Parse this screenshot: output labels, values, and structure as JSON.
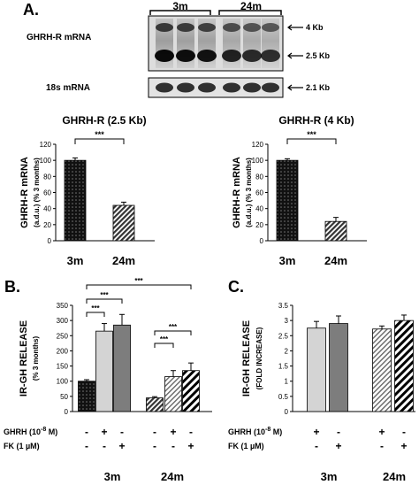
{
  "panel_letters": {
    "a": "A.",
    "b": "B.",
    "c": "C."
  },
  "blot": {
    "groups": [
      "3m",
      "24m"
    ],
    "rows": [
      {
        "label": "GHRH-R mRNA",
        "bands": [
          "4 Kb",
          "2.5 Kb"
        ]
      },
      {
        "label": "18s mRNA",
        "bands": [
          "2.1 Kb"
        ]
      }
    ]
  },
  "chart_data": [
    {
      "type": "bar",
      "title": "GHRH-R (2.5 Kb)",
      "ylabel_line1": "GHRH-R mRNA",
      "ylabel_line2": "(a.d.u.) (% 3 months)",
      "categories": [
        "3m",
        "24m"
      ],
      "values": [
        100,
        44
      ],
      "errors": [
        3,
        4
      ],
      "patterns": [
        "dots",
        "hatch"
      ],
      "ylim": [
        0,
        120
      ],
      "yticks": [
        0,
        20,
        40,
        60,
        80,
        100,
        120
      ],
      "significance": [
        {
          "from": 0,
          "to": 1,
          "label": "***"
        }
      ]
    },
    {
      "type": "bar",
      "title": "GHRH-R (4 Kb)",
      "ylabel_line1": "GHRH-R mRNA",
      "ylabel_line2": "(a.d.u.) (% 3 months)",
      "categories": [
        "3m",
        "24m"
      ],
      "values": [
        100,
        24
      ],
      "errors": [
        2,
        5
      ],
      "patterns": [
        "dots",
        "hatch"
      ],
      "ylim": [
        0,
        120
      ],
      "yticks": [
        0,
        20,
        40,
        60,
        80,
        100,
        120
      ],
      "significance": [
        {
          "from": 0,
          "to": 1,
          "label": "***"
        }
      ]
    },
    {
      "type": "bar",
      "ylabel_line1": "IR-GH RELEASE",
      "ylabel_line2": "(% 3 months)",
      "ylim": [
        0,
        350
      ],
      "yticks": [
        0,
        50,
        100,
        150,
        200,
        250,
        300,
        350
      ],
      "values": [
        100,
        265,
        285,
        45,
        115,
        135
      ],
      "errors": [
        5,
        25,
        35,
        4,
        20,
        25
      ],
      "patterns": [
        "dots",
        "light",
        "dark",
        "hatch",
        "hatch-light",
        "hatch-heavy"
      ],
      "groups": [
        "3m",
        "24m"
      ],
      "treatment_rows": [
        {
          "label": "GHRH (10",
          "sup": "-8",
          "tail": " M)",
          "values": [
            "-",
            "+",
            "-",
            "-",
            "+",
            "-"
          ]
        },
        {
          "label": "FK (1 µM)",
          "values": [
            "-",
            "-",
            "+",
            "-",
            "-",
            "+"
          ]
        }
      ],
      "significance": [
        {
          "from": 0,
          "to": 1,
          "label": "***"
        },
        {
          "from": 0,
          "to": 2,
          "label": "***"
        },
        {
          "from": 0,
          "to": 5,
          "label": "***"
        },
        {
          "from": 3,
          "to": 4,
          "label": "***"
        },
        {
          "from": 3,
          "to": 5,
          "label": "***"
        }
      ]
    },
    {
      "type": "bar",
      "ylabel_line1": "IR-GH RELEASE",
      "ylabel_line2": "(FOLD INCREASE)",
      "ylim": [
        0,
        3.5
      ],
      "yticks": [
        "0",
        "0.5",
        "1",
        "1.5",
        "2",
        "2.5",
        "3",
        "3.5"
      ],
      "ytick_values": [
        0,
        0.5,
        1,
        1.5,
        2,
        2.5,
        3,
        3.5
      ],
      "values": [
        2.75,
        2.9,
        2.72,
        3.0
      ],
      "errors": [
        0.22,
        0.25,
        0.1,
        0.18
      ],
      "patterns": [
        "light",
        "dark",
        "hatch-light",
        "hatch-heavy"
      ],
      "groups": [
        "3m",
        "24m"
      ],
      "treatment_rows": [
        {
          "label": "GHRH (10",
          "sup": "-8",
          "tail": " M)",
          "values": [
            "+",
            "-",
            "+",
            "-"
          ]
        },
        {
          "label": "FK (1 µM)",
          "values": [
            "-",
            "+",
            "-",
            "+"
          ]
        }
      ]
    }
  ]
}
